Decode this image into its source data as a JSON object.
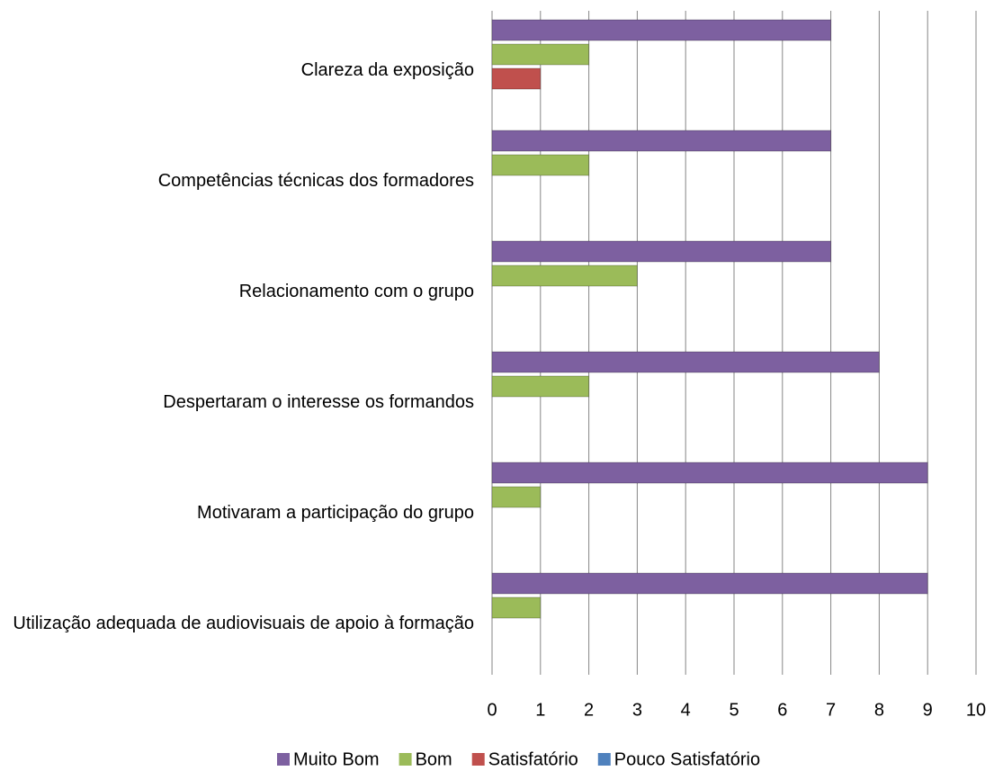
{
  "chart_data": {
    "type": "bar",
    "orientation": "horizontal",
    "categories": [
      "Clareza da exposição",
      "Competências técnicas dos formadores",
      "Relacionamento com o grupo",
      "Despertaram o interesse os formandos",
      "Motivaram a participação do grupo",
      "Utilização adequada de audiovisuais de apoio à formação"
    ],
    "series": [
      {
        "name": "Muito Bom",
        "color": "#7d60a0",
        "values": [
          7,
          7,
          7,
          8,
          9,
          9
        ]
      },
      {
        "name": "Bom",
        "color": "#9bbb59",
        "values": [
          2,
          2,
          3,
          2,
          1,
          1
        ]
      },
      {
        "name": "Satisfatório",
        "color": "#c0504d",
        "values": [
          1,
          0,
          0,
          0,
          0,
          0
        ]
      },
      {
        "name": "Pouco Satisfatório",
        "color": "#4f81bd",
        "values": [
          0,
          0,
          0,
          0,
          0,
          0
        ]
      }
    ],
    "xlim": [
      0,
      10
    ],
    "xticks": [
      0,
      1,
      2,
      3,
      4,
      5,
      6,
      7,
      8,
      9,
      10
    ],
    "grid": true,
    "legend": "bottom"
  }
}
